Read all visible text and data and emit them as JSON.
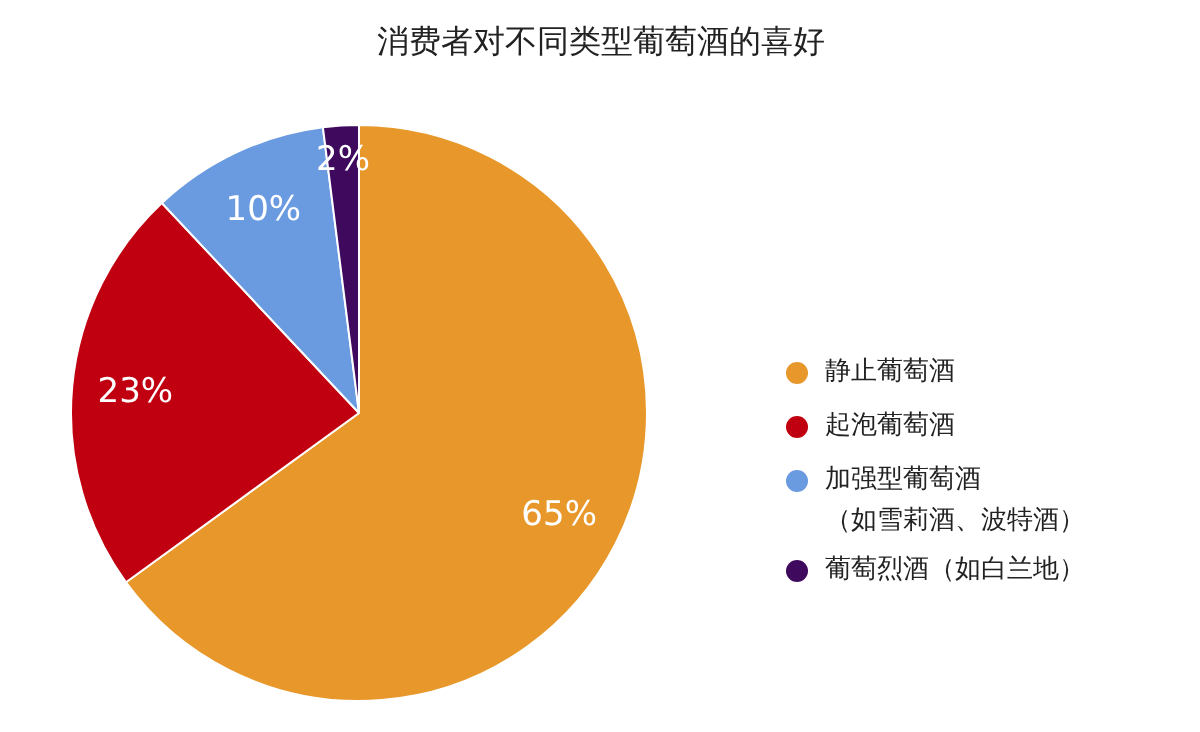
{
  "chart_data": {
    "type": "pie",
    "title": "消费者对不同类型葡萄酒的喜好",
    "categories": [
      "静止葡萄酒",
      "起泡葡萄酒",
      "加强型葡萄酒（如雪莉酒、波特酒）",
      "葡萄烈酒（如白兰地）"
    ],
    "values": [
      65,
      23,
      10,
      2
    ],
    "colors": [
      "#e8982a",
      "#c00010",
      "#6a9ae0",
      "#3f0a5e"
    ],
    "value_labels": [
      "65%",
      "23%",
      "10%",
      "2%"
    ],
    "legend": "right"
  }
}
